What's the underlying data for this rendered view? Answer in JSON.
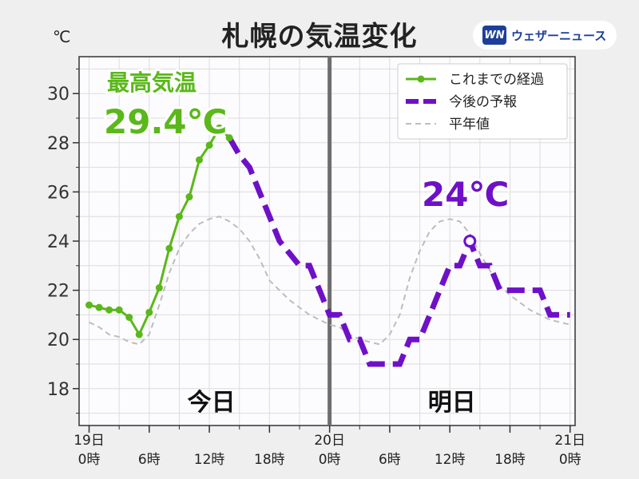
{
  "title": "札幌の気温変化",
  "unit": "℃",
  "brand": {
    "logo": "WN",
    "name": "ウェザーニュース"
  },
  "day_labels": {
    "today": "今日",
    "tomorrow": "明日"
  },
  "annotations": {
    "max_label": "最高気温",
    "max_value": "29.4℃",
    "forecast_peak": "24℃"
  },
  "colors": {
    "observed": "#5ab81a",
    "forecast": "#6f10c8",
    "normal": "#bdbdbd",
    "divider": "#6e6e6e"
  },
  "chart_data": {
    "type": "line",
    "title": "札幌の気温変化",
    "ylabel": "℃",
    "xlabel": "",
    "ylim": [
      16.5,
      31.5
    ],
    "y_ticks": [
      18,
      20,
      22,
      24,
      26,
      28,
      30
    ],
    "xlim": [
      -1,
      48.5
    ],
    "x_ticks": [
      {
        "x": 0,
        "label": "19日\n0時"
      },
      {
        "x": 6,
        "label": "6時"
      },
      {
        "x": 12,
        "label": "12時"
      },
      {
        "x": 18,
        "label": "18時"
      },
      {
        "x": 24,
        "label": "20日\n0時"
      },
      {
        "x": 30,
        "label": "6時"
      },
      {
        "x": 36,
        "label": "12時"
      },
      {
        "x": 42,
        "label": "18時"
      },
      {
        "x": 48,
        "label": "21日\n0時"
      }
    ],
    "minor_x_step": 3,
    "grid": true,
    "legend_position": "top-right",
    "series": [
      {
        "name": "これまでの経過",
        "style": "line-markers",
        "x": [
          0,
          1,
          2,
          3,
          4,
          5,
          6,
          7,
          8,
          9,
          10,
          11,
          12,
          13,
          14
        ],
        "y": [
          21.4,
          21.3,
          21.2,
          21.2,
          20.9,
          20.2,
          21.1,
          22.1,
          23.7,
          25.0,
          25.8,
          27.3,
          27.9,
          28.6,
          28.2
        ]
      },
      {
        "name": "今後の予報",
        "style": "dashed",
        "x": [
          14,
          15,
          16,
          17,
          18,
          19,
          20,
          21,
          22,
          23,
          24,
          25,
          26,
          27,
          28,
          29,
          30,
          31,
          32,
          33,
          34,
          35,
          36,
          37,
          38,
          39,
          40,
          41,
          42,
          43,
          44,
          45,
          46,
          47,
          48
        ],
        "y": [
          28.2,
          27.5,
          27.0,
          26.0,
          25.0,
          24.0,
          23.5,
          23.0,
          23.0,
          22.0,
          21.0,
          21.0,
          20.0,
          20.0,
          19.0,
          19.0,
          19.0,
          19.0,
          20.0,
          20.0,
          21.0,
          22.0,
          23.0,
          23.0,
          24.0,
          23.0,
          23.0,
          22.0,
          22.0,
          22.0,
          22.0,
          22.0,
          21.0,
          21.0,
          21.0
        ]
      },
      {
        "name": "平年値",
        "style": "dashed-thin",
        "x": [
          0,
          1,
          2,
          3,
          4,
          5,
          6,
          7,
          8,
          9,
          10,
          11,
          12,
          13,
          14,
          15,
          16,
          17,
          18,
          19,
          20,
          21,
          22,
          23,
          24,
          25,
          26,
          27,
          28,
          29,
          30,
          31,
          32,
          33,
          34,
          35,
          36,
          37,
          38,
          39,
          40,
          41,
          42,
          43,
          44,
          45,
          46,
          47,
          48
        ],
        "y": [
          20.7,
          20.5,
          20.2,
          20.1,
          19.9,
          19.8,
          20.2,
          21.4,
          22.7,
          23.7,
          24.3,
          24.7,
          24.9,
          25.0,
          24.8,
          24.5,
          24.0,
          23.3,
          22.4,
          22.0,
          21.6,
          21.3,
          21.0,
          20.8,
          20.6,
          20.5,
          20.2,
          20.0,
          19.9,
          19.8,
          20.2,
          21.0,
          22.5,
          23.6,
          24.4,
          24.8,
          24.9,
          24.8,
          24.3,
          23.5,
          22.8,
          22.2,
          21.8,
          21.5,
          21.2,
          21.0,
          20.8,
          20.7,
          20.6
        ]
      }
    ],
    "markers": {
      "forecast_peak": {
        "x": 38,
        "y": 24.0
      }
    }
  }
}
